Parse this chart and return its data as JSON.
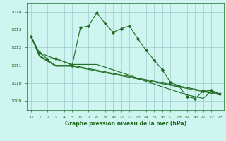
{
  "background_color": "#cef5f0",
  "grid_color": "#99cccc",
  "line_color": "#1f6b1f",
  "xlabel": "Graphe pression niveau de la mer (hPa)",
  "xlim": [
    -0.5,
    23.5
  ],
  "ylim": [
    1008.5,
    1014.5
  ],
  "yticks": [
    1009,
    1010,
    1011,
    1012,
    1013,
    1014
  ],
  "xticks": [
    0,
    1,
    2,
    3,
    4,
    5,
    6,
    7,
    8,
    9,
    10,
    11,
    12,
    13,
    14,
    15,
    16,
    17,
    18,
    19,
    20,
    21,
    22,
    23
  ],
  "series_main_x": [
    0,
    1,
    2,
    3,
    5,
    6,
    7,
    8,
    9,
    10,
    11,
    12,
    13,
    14,
    15,
    16,
    17,
    18,
    19,
    20,
    21,
    22,
    23
  ],
  "series_main_y": [
    1012.6,
    1011.7,
    1011.35,
    1011.4,
    1011.0,
    1013.1,
    1013.2,
    1013.95,
    1013.35,
    1012.85,
    1013.05,
    1013.2,
    1012.5,
    1011.85,
    1011.3,
    1010.75,
    1010.05,
    1009.85,
    1009.25,
    1009.15,
    1009.55,
    1009.6,
    1009.4
  ],
  "series_a_x": [
    0,
    1,
    3,
    5,
    6,
    7,
    8,
    10,
    12,
    14,
    16,
    18,
    19,
    20,
    21,
    22,
    23
  ],
  "series_a_y": [
    1012.6,
    1011.7,
    1011.35,
    1011.05,
    1011.05,
    1011.05,
    1011.05,
    1010.75,
    1010.45,
    1010.1,
    1009.8,
    1009.5,
    1009.35,
    1009.25,
    1009.15,
    1009.55,
    1009.4
  ],
  "series_b_x": [
    0,
    1,
    3,
    5,
    23
  ],
  "series_b_y": [
    1012.6,
    1011.55,
    1011.0,
    1011.0,
    1009.4
  ],
  "series_c_x": [
    0,
    1,
    3,
    5,
    23
  ],
  "series_c_y": [
    1012.6,
    1011.5,
    1010.95,
    1010.95,
    1009.35
  ]
}
